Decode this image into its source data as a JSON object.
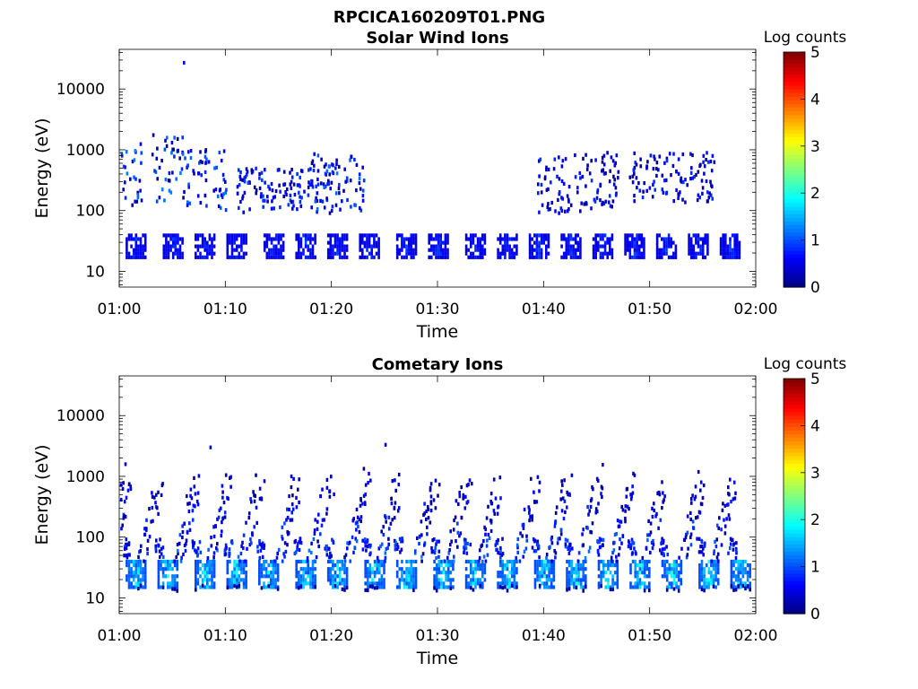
{
  "figure": {
    "title": "RPCICA160209T01.PNG",
    "colormap": "jet",
    "background": "#ffffff",
    "no_data_color": "#ffffff"
  },
  "chart_data": [
    {
      "type": "heatmap",
      "title": "Solar Wind Ions",
      "xlabel": "Time",
      "ylabel": "Energy (eV)",
      "x_ticks": [
        "01:00",
        "01:10",
        "01:20",
        "01:30",
        "01:40",
        "01:50",
        "02:00"
      ],
      "x_range_minutes": [
        0,
        60
      ],
      "y_scale": "log",
      "y_range": [
        5.5,
        45000
      ],
      "y_ticks": [
        10,
        100,
        1000,
        10000
      ],
      "y_tick_labels": [
        "10",
        "100",
        "1000",
        "10000"
      ],
      "colorbar": {
        "title": "Log counts",
        "range": [
          0,
          5
        ],
        "ticks": [
          "0",
          "1",
          "2",
          "3",
          "4",
          "5"
        ]
      },
      "approximate_structure": {
        "low_energy_band": {
          "energy_range_eV": [
            17,
            40
          ],
          "peak_log_counts": 1.0,
          "burst_times_minutes": [
            1.5,
            5,
            8,
            11,
            14.5,
            17.5,
            20.5,
            23.5,
            27,
            30,
            33.5,
            36.5,
            39.5,
            42.5,
            45.5,
            48.5,
            51.5,
            54.5,
            57.5
          ]
        },
        "sparse_high_energy_clusters": [
          {
            "time_minutes": [
              0,
              2
            ],
            "energy_eV": [
              120,
              1800
            ],
            "peak_log_counts": 1.8
          },
          {
            "time_minutes": [
              3,
              6
            ],
            "energy_eV": [
              130,
              1800
            ],
            "peak_log_counts": 1.8
          },
          {
            "time_minutes": [
              6,
              10
            ],
            "energy_eV": [
              100,
              1000
            ],
            "peak_log_counts": 1.6
          },
          {
            "time_minutes": [
              11,
              20
            ],
            "energy_eV": [
              90,
              500
            ],
            "peak_log_counts": 1.3
          },
          {
            "time_minutes": [
              18,
              23
            ],
            "energy_eV": [
              100,
              900
            ],
            "peak_log_counts": 1.7
          },
          {
            "time_minutes": [
              39,
              47
            ],
            "energy_eV": [
              90,
              900
            ],
            "peak_log_counts": 1.2
          },
          {
            "time_minutes": [
              48,
              56
            ],
            "energy_eV": [
              130,
              900
            ],
            "peak_log_counts": 1.2
          }
        ],
        "isolated_points": [
          {
            "time_minutes": 6,
            "energy_eV": 27000,
            "log_counts": 0.7
          }
        ]
      }
    },
    {
      "type": "heatmap",
      "title": "Cometary Ions",
      "xlabel": "Time",
      "ylabel": "Energy (eV)",
      "x_ticks": [
        "01:00",
        "01:10",
        "01:20",
        "01:30",
        "01:40",
        "01:50",
        "02:00"
      ],
      "x_range_minutes": [
        0,
        60
      ],
      "y_scale": "log",
      "y_range": [
        5.5,
        45000
      ],
      "y_ticks": [
        10,
        100,
        1000,
        10000
      ],
      "y_tick_labels": [
        "10",
        "100",
        "1000",
        "10000"
      ],
      "colorbar": {
        "title": "Log counts",
        "range": [
          0,
          5
        ],
        "ticks": [
          "0",
          "1",
          "2",
          "3",
          "4",
          "5"
        ]
      },
      "approximate_structure": {
        "low_energy_band": {
          "energy_range_eV": [
            15,
            40
          ],
          "peak_log_counts": 2.2,
          "burst_times_minutes": [
            1.5,
            4.5,
            8,
            11,
            14,
            17.5,
            20.5,
            24,
            27,
            30.5,
            33.5,
            36.5,
            40,
            43,
            46,
            49,
            52,
            55.5,
            58.5
          ]
        },
        "rising_streaks": {
          "description": "diagonal streaks rising from ~40 eV toward ~1000-3000 eV before each burst",
          "energy_range_eV": [
            40,
            3000
          ],
          "peak_log_counts": 1.3
        },
        "isolated_points": [
          {
            "time_minutes": 25,
            "energy_eV": 3300,
            "log_counts": 0.4
          },
          {
            "time_minutes": 8.5,
            "energy_eV": 3000,
            "log_counts": 0.4
          }
        ]
      }
    }
  ]
}
